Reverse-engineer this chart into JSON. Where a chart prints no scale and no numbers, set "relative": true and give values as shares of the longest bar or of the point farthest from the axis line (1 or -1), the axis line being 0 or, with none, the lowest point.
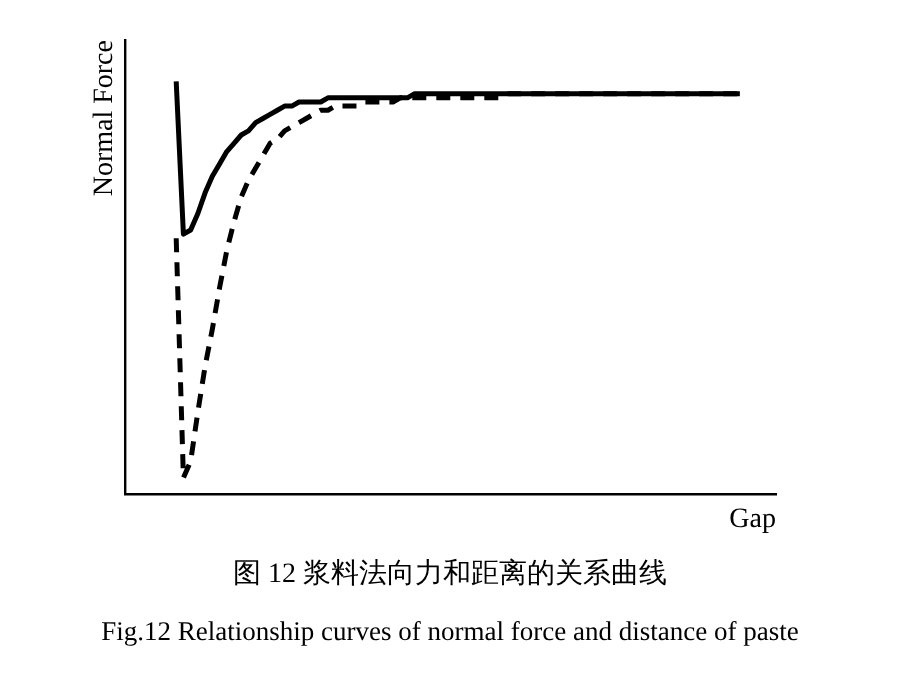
{
  "chart_data": {
    "type": "line",
    "relative": true,
    "xlabel": "Gap",
    "ylabel": "Normal Force",
    "tick_labels": false,
    "marker": "none",
    "annotations": [
      "图 12  浆料法向力和距离的关系曲线",
      "Fig.12 Relationship curves of normal force and distance of paste"
    ],
    "categories": [
      null,
      null,
      null,
      null,
      null,
      null,
      null,
      null,
      null,
      null,
      null,
      null,
      null,
      null,
      null,
      null,
      null,
      null,
      null,
      null,
      null,
      null,
      null,
      null,
      null,
      null,
      null,
      null,
      null,
      null,
      null,
      null,
      null,
      null,
      null,
      null,
      null,
      null,
      null,
      null,
      null,
      null,
      null,
      null,
      null,
      null,
      null,
      null,
      null,
      null,
      null,
      null,
      null,
      null,
      null,
      null,
      null,
      null,
      null,
      null,
      null,
      null,
      null,
      null,
      null,
      null,
      null,
      null,
      null,
      null,
      null,
      null,
      null,
      null,
      null,
      null,
      null,
      null,
      null
    ],
    "series": [
      {
        "color": "#000000",
        "line_style": "solid",
        "values": [
          1.0,
          0.63,
          0.64,
          0.68,
          0.73,
          0.77,
          0.8,
          0.83,
          0.85,
          0.87,
          0.88,
          0.9,
          0.91,
          0.92,
          0.93,
          0.94,
          0.94,
          0.95,
          0.95,
          0.95,
          0.95,
          0.96,
          0.96,
          0.96,
          0.96,
          0.96,
          0.96,
          0.96,
          0.96,
          0.96,
          0.96,
          0.96,
          0.96,
          0.97,
          0.97,
          0.97,
          0.97,
          0.97,
          0.97,
          0.97,
          0.97,
          0.97,
          0.97,
          0.97,
          0.97,
          0.97,
          0.97,
          0.97,
          0.97,
          0.97,
          0.97,
          0.97,
          0.97,
          0.97,
          0.97,
          0.97,
          0.97,
          0.97,
          0.97,
          0.97,
          0.97,
          0.97,
          0.97,
          0.97,
          0.97,
          0.97,
          0.97,
          0.97,
          0.97,
          0.97,
          0.97,
          0.97,
          0.97,
          0.97,
          0.97,
          0.97,
          0.97,
          0.97,
          0.97
        ]
      },
      {
        "color": "#000000",
        "line_style": "dashed",
        "values": [
          0.62,
          0.04,
          0.08,
          0.2,
          0.31,
          0.4,
          0.5,
          0.59,
          0.66,
          0.72,
          0.76,
          0.79,
          0.82,
          0.85,
          0.86,
          0.88,
          0.89,
          0.9,
          0.91,
          0.92,
          0.93,
          0.93,
          0.94,
          0.94,
          0.94,
          0.94,
          0.95,
          0.95,
          0.95,
          0.95,
          0.95,
          0.96,
          0.96,
          0.96,
          0.96,
          0.96,
          0.96,
          0.96,
          0.96,
          0.96,
          0.96,
          0.96,
          0.96,
          0.96,
          0.96,
          0.96,
          0.97,
          0.97,
          0.97,
          0.97,
          0.97,
          0.97,
          0.97,
          0.97,
          0.97,
          0.97,
          0.97,
          0.97,
          0.97,
          0.97,
          0.97,
          0.97,
          0.97,
          0.97,
          0.97,
          0.97,
          0.97,
          0.97,
          0.97,
          0.97,
          0.97,
          0.97,
          0.97,
          0.97,
          0.97,
          0.97,
          0.97,
          0.97,
          0.97
        ]
      }
    ]
  }
}
